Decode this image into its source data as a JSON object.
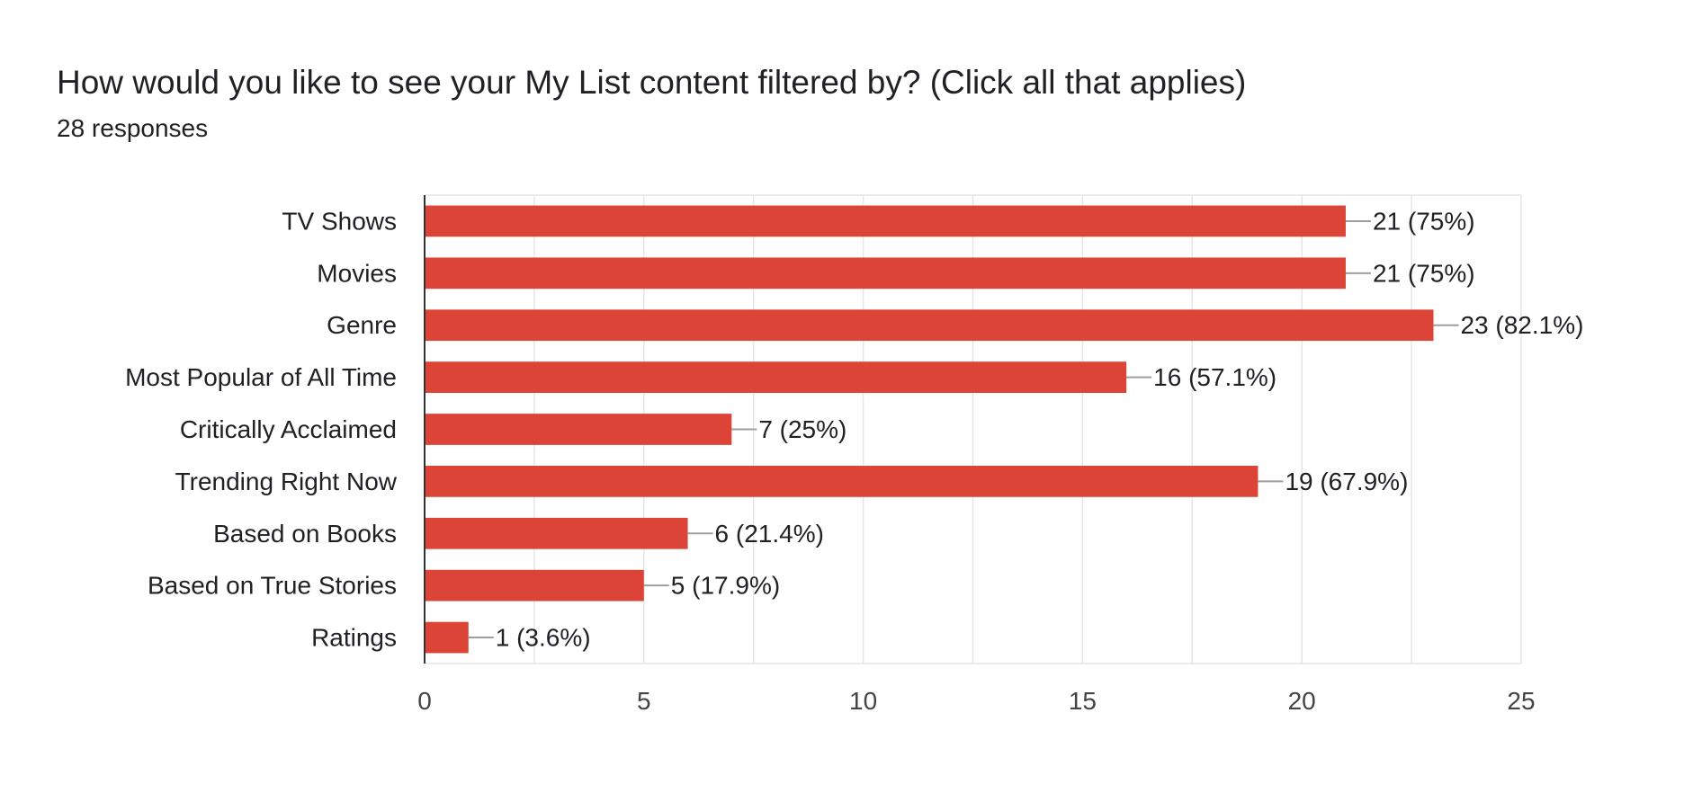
{
  "header": {
    "title": "How would you like to see your My List content filtered by? (Click all that applies)",
    "subtitle": "28 responses"
  },
  "chart_data": {
    "type": "bar",
    "orientation": "horizontal",
    "title": "How would you like to see your My List content filtered by? (Click all that applies)",
    "subtitle": "28 responses",
    "categories": [
      "TV Shows",
      "Movies",
      "Genre",
      "Most Popular of All Time",
      "Critically Acclaimed",
      "Trending Right Now",
      "Based on Books",
      "Based on True Stories",
      "Ratings"
    ],
    "values": [
      21,
      21,
      23,
      16,
      7,
      19,
      6,
      5,
      1
    ],
    "data_labels": [
      "21 (75%)",
      "21 (75%)",
      "23 (82.1%)",
      "16 (57.1%)",
      "7 (25%)",
      "19 (67.9%)",
      "6 (21.4%)",
      "5 (17.9%)",
      "1 (3.6%)"
    ],
    "xlim": [
      0,
      25
    ],
    "xticks": [
      "0",
      "5",
      "10",
      "15",
      "20",
      "25"
    ],
    "xlabel": "",
    "ylabel": "",
    "grid": true,
    "legend": "none",
    "colors": {
      "bar": "#dc4437",
      "grid": "#e6e6e6",
      "axis": "#333333",
      "leader": "#9e9e9e"
    }
  }
}
